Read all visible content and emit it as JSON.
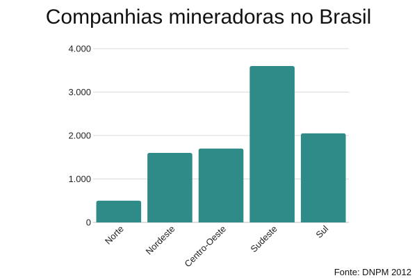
{
  "chart_data": {
    "type": "bar",
    "title": "Companhias mineradoras no Brasil",
    "categories": [
      "Norte",
      "Nordeste",
      "Centro-Oeste",
      "Sudeste",
      "Sul"
    ],
    "values": [
      500,
      1600,
      1700,
      3600,
      2050
    ],
    "xlabel": "",
    "ylabel": "",
    "ylim": [
      0,
      4000
    ],
    "yticks": [
      0,
      1000,
      2000,
      3000,
      4000
    ],
    "ytick_labels": [
      "0",
      "1.000",
      "2.000",
      "3.000",
      "4.000"
    ],
    "grid": true,
    "legend": "none",
    "bar_color": "#2e8b87",
    "source": "Fonte: DNPM 2012"
  }
}
